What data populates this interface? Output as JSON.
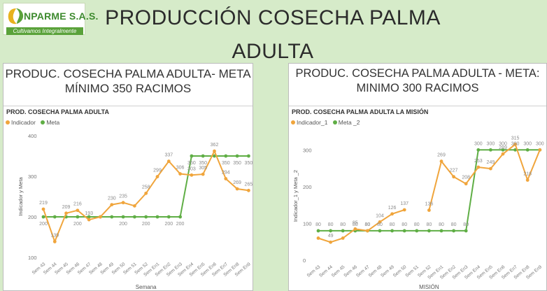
{
  "logo": {
    "name": "NPARME S.A.S.",
    "tagline": "Cultivamos Integralmente"
  },
  "page": {
    "title_line1": "PRODUCCIÓN COSECHA PALMA",
    "title_line2": "ADULTA"
  },
  "colors": {
    "background": "#d6ebc9",
    "indicador": "#f0a53c",
    "meta": "#5fae45"
  },
  "left_card": {
    "title_line1": "PRODUC. COSECHA PALMA ADULTA- META",
    "title_line2": "MÍNIMO 350 RACIMOS"
  },
  "right_card": {
    "title_line1": "PRODUC. COSECHA PALMA ADULTA - META:",
    "title_line2": "MINIMO 300 RACIMOS"
  },
  "chart_data": [
    {
      "type": "line",
      "title": "PROD. COSECHA PALMA ADULTA",
      "xlabel": "Semana",
      "ylabel": "Indicador y Meta",
      "ylim": [
        100,
        400
      ],
      "yticks": [
        100,
        200,
        300,
        400
      ],
      "grid": false,
      "legend_position": "top-left",
      "categories": [
        "Sem 43",
        "Sem 44",
        "Sem 45",
        "Sem 46",
        "Sem 47",
        "Sem 48",
        "Sem 49",
        "Sem 50",
        "Sem 51",
        "Sem 52",
        "Sem En1",
        "Sem En2",
        "Sem En3",
        "Sem En4",
        "Sem En5",
        "Sem En6",
        "Sem En7",
        "Sem En8",
        "Sem En9"
      ],
      "series": [
        {
          "name": "Indicador",
          "color": "#f0a53c",
          "values": [
            219,
            139,
            209,
            216,
            193,
            200,
            230,
            235,
            227,
            258,
            299,
            337,
            306,
            303,
            305,
            362,
            294,
            269,
            265
          ],
          "labels": [
            "219",
            "139",
            "209",
            "216",
            "193",
            "",
            "230",
            "235",
            "",
            "258",
            "299",
            "337",
            "306",
            "303",
            "305",
            "362",
            "294",
            "269",
            "265"
          ]
        },
        {
          "name": "Meta",
          "color": "#5fae45",
          "values": [
            200,
            200,
            200,
            200,
            200,
            200,
            200,
            200,
            200,
            200,
            200,
            200,
            200,
            350,
            350,
            350,
            350,
            350,
            350
          ],
          "labels": [
            "200",
            "",
            "",
            "200",
            "",
            "",
            "",
            "200",
            "",
            "200",
            "",
            "200",
            "200",
            "350",
            "350",
            "",
            "350",
            "350",
            "350"
          ]
        }
      ]
    },
    {
      "type": "line",
      "title": "PROD. COSECHA PALMA ADULTA LA MISIÓN",
      "xlabel": "MISIÓN",
      "ylabel": "Indicador_1 y Meta _2",
      "ylim": [
        0,
        350
      ],
      "yticks": [
        0,
        100,
        200,
        300
      ],
      "grid": false,
      "legend_position": "top-left",
      "categories": [
        "Sem 43",
        "Sem 44",
        "Sem 45",
        "Sem 46",
        "Sem 47",
        "Sem 48",
        "Sem 49",
        "Sem 50",
        "Sem 51",
        "Sem 52",
        "Sem En1",
        "Sem En2",
        "Sem En3",
        "Sem En4",
        "Sem En5",
        "Sem En6",
        "Sem En7",
        "Sem En8",
        "Sem En9"
      ],
      "series": [
        {
          "name": "Indicador_1",
          "color": "#f0a53c",
          "values": [
            60,
            49,
            60,
            85,
            80,
            104,
            126,
            137,
            null,
            136,
            269,
            227,
            208,
            253,
            249,
            289,
            315,
            218,
            300
          ],
          "labels": [
            "",
            "49",
            "",
            "85",
            "80",
            "104",
            "126",
            "137",
            "",
            "136",
            "269",
            "227",
            "208",
            "253",
            "249",
            "289",
            "315",
            "218",
            ""
          ]
        },
        {
          "name": "Meta _2",
          "color": "#5fae45",
          "values": [
            80,
            80,
            80,
            80,
            80,
            80,
            80,
            80,
            80,
            80,
            80,
            80,
            80,
            300,
            300,
            300,
            300,
            300,
            300
          ],
          "labels": [
            "80",
            "80",
            "80",
            "80",
            "80",
            "80",
            "80",
            "80",
            "80",
            "80",
            "80",
            "80",
            "80",
            "300",
            "300",
            "300",
            "300",
            "300",
            "300"
          ]
        }
      ]
    }
  ]
}
